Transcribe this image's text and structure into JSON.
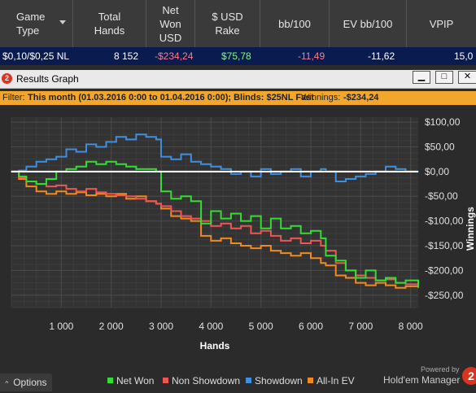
{
  "table": {
    "headers": {
      "game_type": "Game\nType",
      "total_hands": "Total\nHands",
      "net_won": "Net\nWon\nUSD",
      "rake": "$ USD\nRake",
      "bb100": "bb/100",
      "evbb100": "EV bb/100",
      "vpip": "VPIP"
    },
    "row": {
      "game_type": "$0,10/$0,25 NL",
      "total_hands": "8 152",
      "net_won": "-$234,24",
      "rake": "$75,78",
      "bb100": "-11,49",
      "evbb100": "-11,62",
      "vpip": "15,0"
    }
  },
  "window": {
    "title": "Results Graph",
    "app_icon_text": "2",
    "minimize_label": "▁",
    "maximize_label": "□",
    "close_label": "✕"
  },
  "filter": {
    "prefix": "Filter:",
    "period": "This month (01.03.2016 0:00 to 01.04.2016 0:00); Blinds: $25NL Fast",
    "winnings_label": "Winnings:",
    "winnings_value": "-$234,24"
  },
  "chart_data": {
    "type": "line",
    "xlabel": "Hands",
    "ylabel": "Winnings",
    "xlim": [
      0,
      8152
    ],
    "ylim": [
      -275,
      110
    ],
    "xticks": [
      1000,
      2000,
      3000,
      4000,
      5000,
      6000,
      7000,
      8000
    ],
    "xtick_labels": [
      "1 000",
      "2 000",
      "3 000",
      "4 000",
      "5 000",
      "6 000",
      "7 000",
      "8 000"
    ],
    "yticks": [
      100,
      50,
      0,
      -50,
      -100,
      -150,
      -200,
      -250
    ],
    "ytick_labels": [
      "$100,00",
      "$50,00",
      "$0,00",
      "-$50,00",
      "-$100,00",
      "-$150,00",
      "-$200,00",
      "-$250,00"
    ],
    "grid": true,
    "legend_position": "bottom",
    "series": [
      {
        "name": "Net Won",
        "color": "#33dd33",
        "x": [
          0,
          150,
          300,
          500,
          700,
          900,
          1100,
          1300,
          1500,
          1700,
          1900,
          2100,
          2300,
          2500,
          2700,
          2900,
          3000,
          3200,
          3400,
          3600,
          3800,
          4000,
          4200,
          4400,
          4600,
          4800,
          5000,
          5200,
          5400,
          5600,
          5800,
          6000,
          6200,
          6300,
          6500,
          6700,
          6900,
          7100,
          7300,
          7500,
          7700,
          7900,
          8152
        ],
        "y": [
          0,
          -10,
          -20,
          -25,
          -15,
          0,
          5,
          10,
          20,
          15,
          20,
          15,
          10,
          5,
          5,
          0,
          -40,
          -55,
          -50,
          -60,
          -105,
          -80,
          -95,
          -85,
          -100,
          -90,
          -115,
          -95,
          -115,
          -110,
          -125,
          -120,
          -135,
          -170,
          -180,
          -200,
          -215,
          -200,
          -220,
          -215,
          -225,
          -220,
          -234
        ]
      },
      {
        "name": "Non Showdown",
        "color": "#ee5555",
        "x": [
          0,
          150,
          300,
          500,
          700,
          900,
          1100,
          1300,
          1500,
          1700,
          1900,
          2100,
          2300,
          2500,
          2700,
          2900,
          3000,
          3200,
          3400,
          3600,
          3800,
          4000,
          4200,
          4400,
          4600,
          4800,
          5000,
          5200,
          5400,
          5600,
          5800,
          6000,
          6200,
          6300,
          6500,
          6700,
          6900,
          7100,
          7300,
          7500,
          7700,
          7900,
          8152
        ],
        "y": [
          0,
          -12,
          -20,
          -25,
          -30,
          -28,
          -35,
          -40,
          -35,
          -42,
          -45,
          -48,
          -50,
          -55,
          -60,
          -65,
          -70,
          -80,
          -90,
          -95,
          -100,
          -110,
          -105,
          -115,
          -110,
          -125,
          -120,
          -130,
          -140,
          -135,
          -145,
          -140,
          -150,
          -160,
          -185,
          -200,
          -210,
          -215,
          -220,
          -218,
          -225,
          -228,
          -232
        ]
      },
      {
        "name": "Showdown",
        "color": "#3f8fe0",
        "x": [
          0,
          150,
          300,
          500,
          700,
          900,
          1100,
          1300,
          1500,
          1700,
          1900,
          2100,
          2300,
          2500,
          2700,
          2900,
          3000,
          3200,
          3400,
          3600,
          3800,
          4000,
          4200,
          4400,
          4600,
          4800,
          5000,
          5200,
          5400,
          5600,
          5800,
          6000,
          6200,
          6300,
          6500,
          6700,
          6900,
          7100,
          7300,
          7500,
          7700,
          7900,
          8152
        ],
        "y": [
          0,
          2,
          10,
          20,
          25,
          30,
          45,
          40,
          55,
          50,
          60,
          70,
          65,
          75,
          70,
          65,
          30,
          25,
          35,
          20,
          15,
          10,
          5,
          -5,
          0,
          -10,
          5,
          -5,
          0,
          5,
          -10,
          0,
          5,
          0,
          -20,
          -15,
          -10,
          -5,
          0,
          10,
          5,
          0,
          0
        ]
      },
      {
        "name": "All-In EV",
        "color": "#f08a20",
        "x": [
          0,
          150,
          300,
          500,
          700,
          900,
          1100,
          1300,
          1500,
          1700,
          1900,
          2100,
          2300,
          2500,
          2700,
          2900,
          3000,
          3200,
          3400,
          3600,
          3800,
          4000,
          4200,
          4400,
          4600,
          4800,
          5000,
          5200,
          5400,
          5600,
          5800,
          6000,
          6200,
          6300,
          6500,
          6700,
          6900,
          7100,
          7300,
          7500,
          7700,
          7900,
          8152
        ],
        "y": [
          0,
          -15,
          -30,
          -40,
          -45,
          -40,
          -45,
          -42,
          -48,
          -45,
          -50,
          -45,
          -55,
          -50,
          -60,
          -65,
          -75,
          -90,
          -95,
          -100,
          -130,
          -140,
          -135,
          -145,
          -150,
          -155,
          -150,
          -160,
          -165,
          -170,
          -165,
          -175,
          -185,
          -190,
          -210,
          -215,
          -225,
          -230,
          -225,
          -230,
          -235,
          -232,
          -234
        ]
      }
    ]
  },
  "bottom": {
    "options_label": "Options",
    "legend": [
      {
        "name": "Net Won",
        "color": "#33dd33"
      },
      {
        "name": "Non Showdown",
        "color": "#ee5555"
      },
      {
        "name": "Showdown",
        "color": "#3f8fe0"
      },
      {
        "name": "All-In EV",
        "color": "#f08a20"
      }
    ],
    "powered_by": "Powered by",
    "brand": "Hold'em Manager",
    "brand_logo": "2"
  }
}
